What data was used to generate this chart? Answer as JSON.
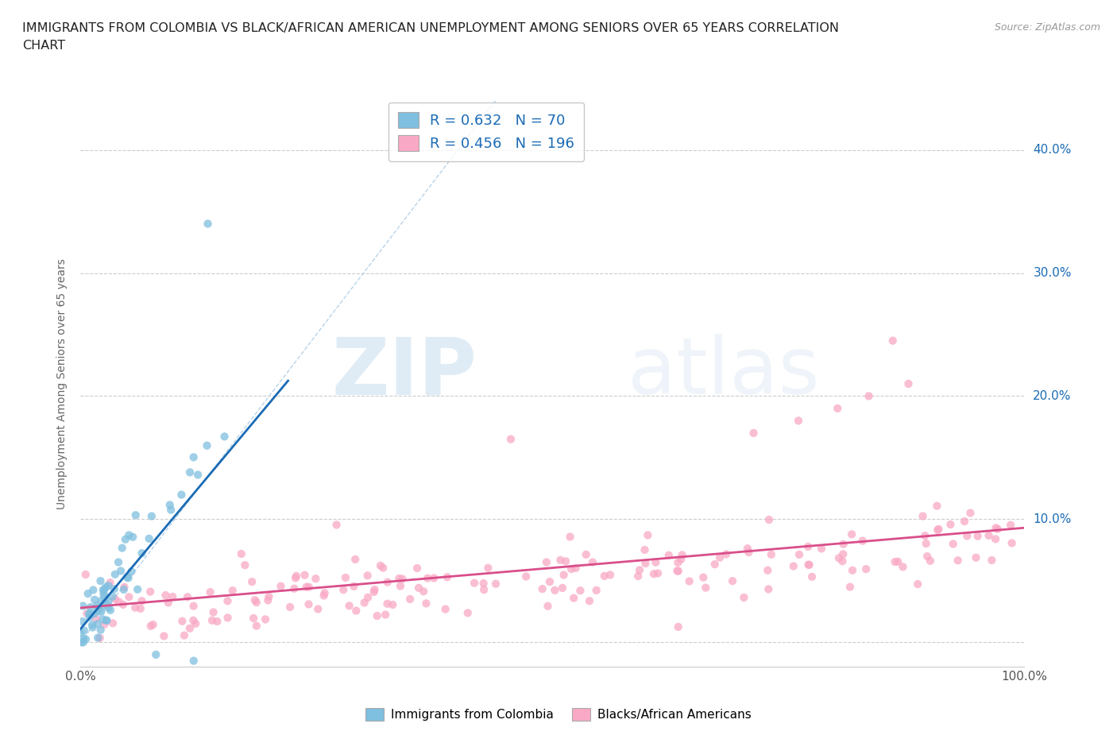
{
  "title": "IMMIGRANTS FROM COLOMBIA VS BLACK/AFRICAN AMERICAN UNEMPLOYMENT AMONG SENIORS OVER 65 YEARS CORRELATION\nCHART",
  "source": "Source: ZipAtlas.com",
  "ylabel": "Unemployment Among Seniors over 65 years",
  "xlim": [
    0.0,
    1.0
  ],
  "ylim": [
    -0.02,
    0.44
  ],
  "xticks": [
    0.0,
    0.1,
    0.2,
    0.3,
    0.4,
    0.5,
    0.6,
    0.7,
    0.8,
    0.9,
    1.0
  ],
  "xticklabels": [
    "0.0%",
    "",
    "",
    "",
    "",
    "",
    "",
    "",
    "",
    "",
    "100.0%"
  ],
  "yticks": [
    0.0,
    0.1,
    0.2,
    0.3,
    0.4
  ],
  "yticklabels": [
    "",
    "10.0%",
    "20.0%",
    "30.0%",
    "40.0%"
  ],
  "colombia_color": "#7fbfdf",
  "colombia_line_color": "#1a6bb5",
  "black_color": "#f9a8c5",
  "black_line_color": "#d94f8a",
  "diagonal_color": "#b0cfe8",
  "R_colombia": 0.632,
  "N_colombia": 70,
  "R_black": 0.456,
  "N_black": 196,
  "watermark_zip": "ZIP",
  "watermark_atlas": "atlas",
  "legend_label_1": "Immigrants from Colombia",
  "legend_label_2": "Blacks/African Americans"
}
